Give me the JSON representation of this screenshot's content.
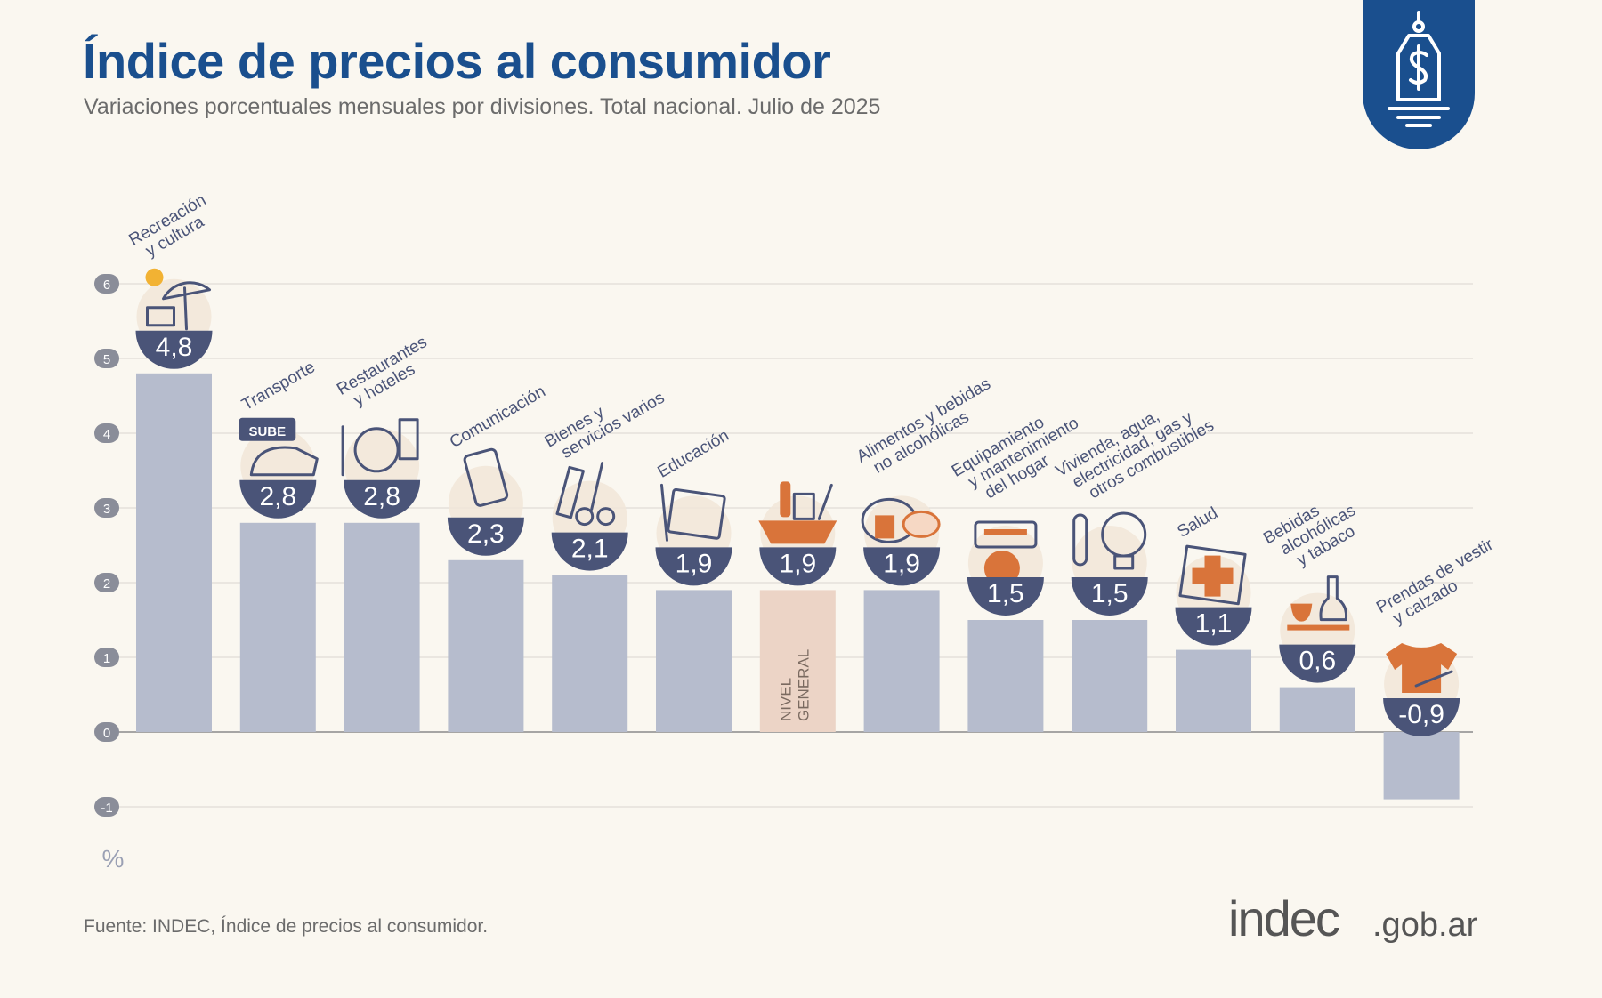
{
  "header": {
    "title": "Índice de precios al consumidor",
    "subtitle": "Variaciones porcentuales mensuales por divisiones. Total nacional. Julio de 2025"
  },
  "footer": {
    "source": "Fuente: INDEC, Índice de precios al consumidor.",
    "logo_main": "indec",
    "logo_domain": ".gob.ar"
  },
  "badge": {
    "icon": "price-tag-dollar-icon"
  },
  "colors": {
    "title": "#1a4f8e",
    "bar": "#b6bccd",
    "bar_highlight": "#ecd4c6",
    "label_circle": "#4a5478",
    "icon_accent": "#d9743a",
    "grid": "#d9d6cf"
  },
  "chart_data": {
    "type": "bar",
    "unit_label": "%",
    "ylim": [
      -1,
      6
    ],
    "y_ticks": [
      -1,
      0,
      1,
      2,
      3,
      4,
      5,
      6
    ],
    "grid": true,
    "categories": [
      [
        "Recreación",
        "y cultura"
      ],
      [
        "Transporte"
      ],
      [
        "Restaurantes",
        "y hoteles"
      ],
      [
        "Comunicación"
      ],
      [
        "Bienes y",
        "servicios varios"
      ],
      [
        "Educación"
      ],
      [],
      [
        "Alimentos y bebidas",
        "no alcohólicas"
      ],
      [
        "Equipamiento",
        "y mantenimiento",
        "del hogar"
      ],
      [
        "Vivienda, agua,",
        "electricidad, gas y",
        "otros combustibles"
      ],
      [
        "Salud"
      ],
      [
        "Bebidas",
        "alcohólicas",
        "y tabaco"
      ],
      [
        "Prendas de vestir",
        "y calzado"
      ]
    ],
    "values": [
      4.8,
      2.8,
      2.8,
      2.3,
      2.1,
      1.9,
      1.9,
      1.9,
      1.5,
      1.5,
      1.1,
      0.6,
      -0.9
    ],
    "value_labels": [
      "4,8",
      "2,8",
      "2,8",
      "2,3",
      "2,1",
      "1,9",
      "1,9",
      "1,9",
      "1,5",
      "1,5",
      "1,1",
      "0,6",
      "-0,9"
    ],
    "highlight_label": [
      "NIVEL",
      "GENERAL"
    ],
    "highlight_index": 6,
    "icons": [
      "beach-umbrella-icon",
      "bus-card-icon",
      "plate-cutlery-icon",
      "smartphone-icon",
      "comb-scissors-icon",
      "notebook-icon",
      "shopping-bag-icon",
      "roast-chicken-icon",
      "air-conditioner-icon",
      "light-bulb-icon",
      "first-aid-icon",
      "wine-bottle-icon",
      "t-shirt-icon"
    ]
  }
}
